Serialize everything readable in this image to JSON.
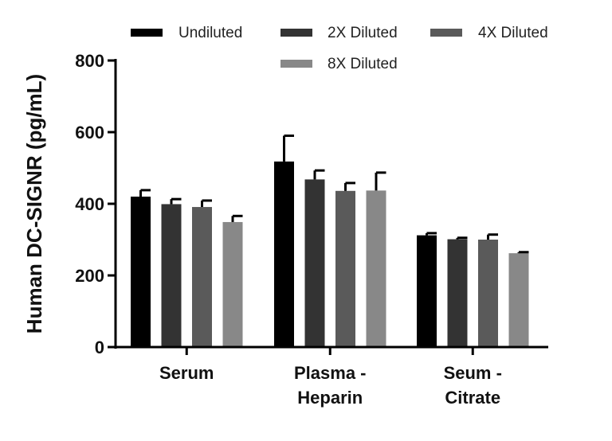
{
  "chart_data": {
    "type": "bar",
    "title": "",
    "xlabel": "",
    "ylabel": "Human DC-SIGNR (pg/mL)",
    "ylim": [
      0,
      800
    ],
    "yticks": [
      "0",
      "200",
      "400",
      "600",
      "800"
    ],
    "categories": [
      [
        "Serum"
      ],
      [
        "Plasma -",
        "Heparin"
      ],
      [
        "Seum -",
        "Citrate"
      ]
    ],
    "legend_position": "top",
    "series": [
      {
        "name": "Undiluted",
        "color": "#000000",
        "values": [
          420,
          518,
          312
        ],
        "errors": [
          18,
          72,
          6
        ]
      },
      {
        "name": "2X Diluted",
        "color": "#333333",
        "values": [
          399,
          468,
          301
        ],
        "errors": [
          14,
          25,
          4
        ]
      },
      {
        "name": "4X Diluted",
        "color": "#5a5a5a",
        "values": [
          391,
          436,
          300
        ],
        "errors": [
          18,
          22,
          14
        ]
      },
      {
        "name": "8X Diluted",
        "color": "#888888",
        "values": [
          349,
          437,
          262
        ],
        "errors": [
          17,
          50,
          3
        ]
      }
    ]
  }
}
